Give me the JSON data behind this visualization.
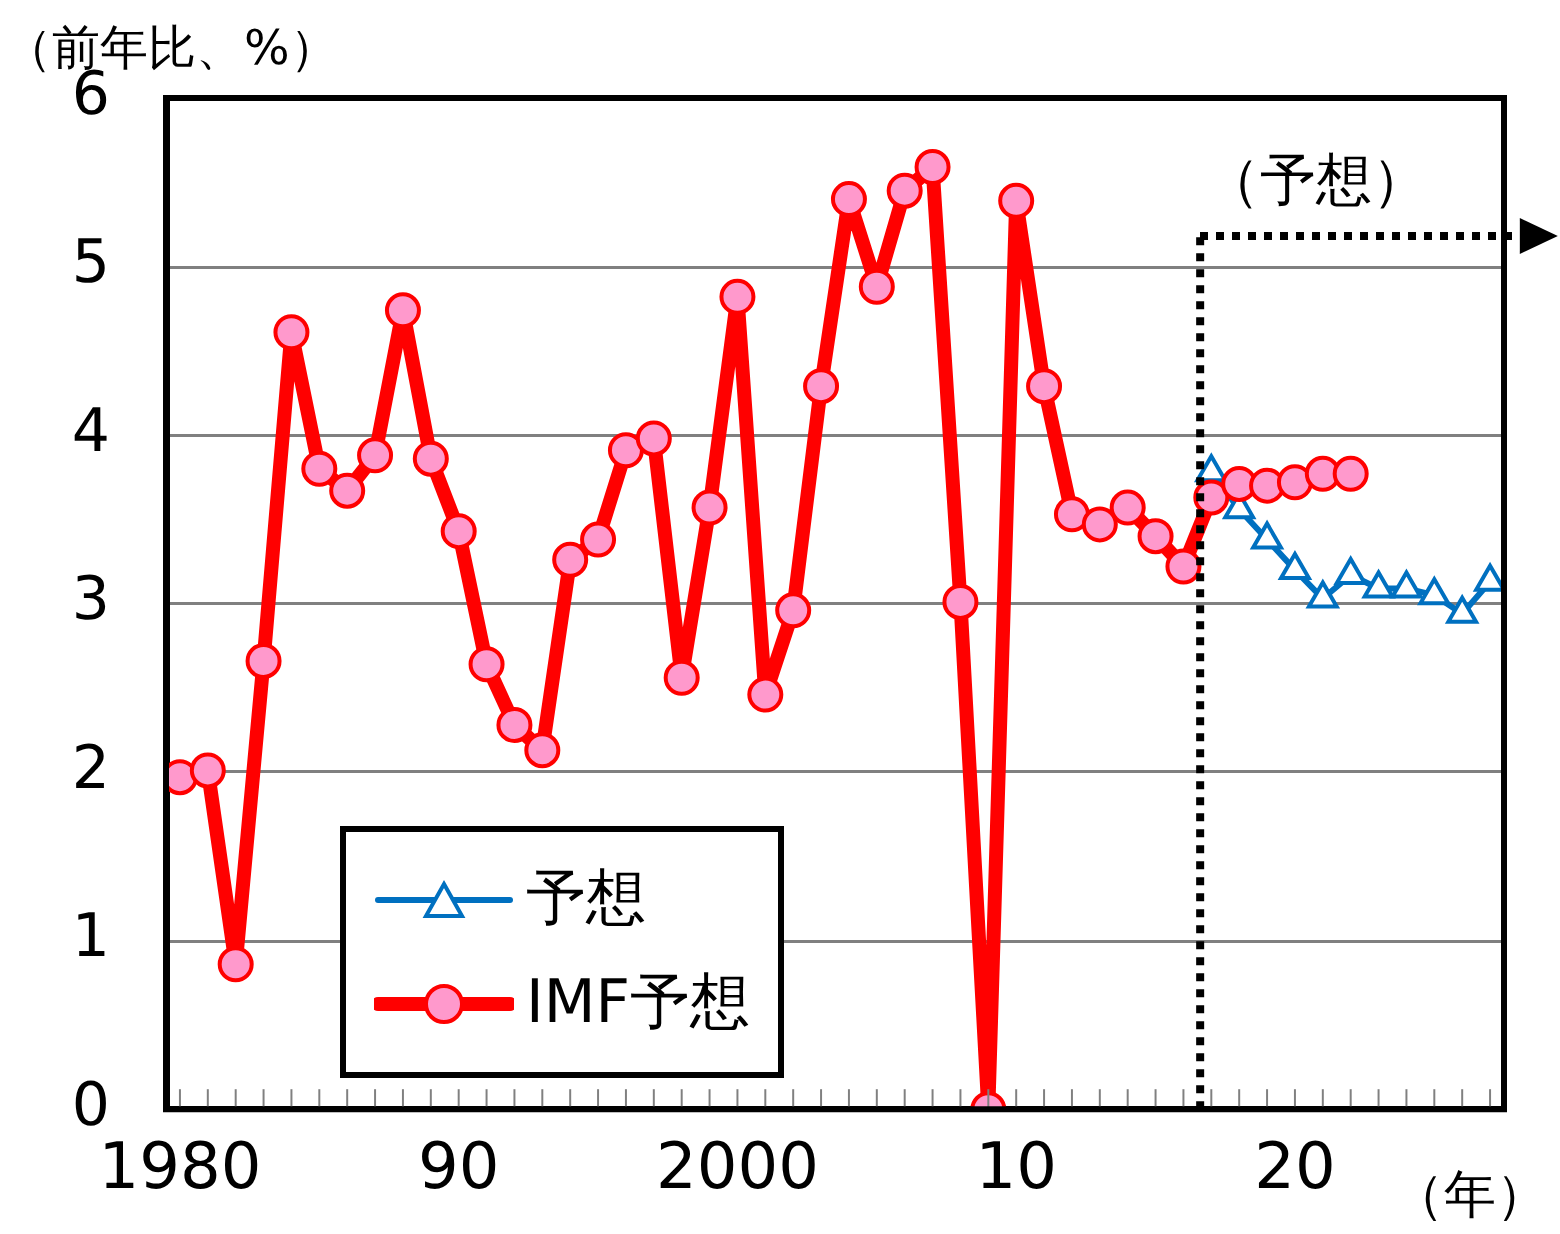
{
  "chart_data": {
    "type": "line",
    "ylabel": "（前年比、%）",
    "xlabel": "（年）",
    "series": [
      {
        "name": "予想",
        "color": "#0070c0",
        "marker": "triangle",
        "x": [
          2017,
          2018,
          2019,
          2020,
          2021,
          2022,
          2023,
          2024,
          2025,
          2026,
          2027
        ],
        "values": [
          3.78,
          3.56,
          3.38,
          3.2,
          3.03,
          3.17,
          3.09,
          3.09,
          3.05,
          2.94,
          3.13
        ]
      },
      {
        "name": "IMF予想",
        "color": "#ff0000",
        "marker": "circle",
        "x": [
          1980,
          1981,
          1982,
          1983,
          1984,
          1985,
          1986,
          1987,
          1988,
          1989,
          1990,
          1991,
          1992,
          1993,
          1994,
          1995,
          1996,
          1997,
          1998,
          1999,
          2000,
          2001,
          2002,
          2003,
          2004,
          2005,
          2006,
          2007,
          2008,
          2009,
          2010,
          2011,
          2012,
          2013,
          2014,
          2015,
          2016,
          2017,
          2018,
          2019,
          2020,
          2021,
          2022
        ],
        "values": [
          1.97,
          2.01,
          0.86,
          2.66,
          4.61,
          3.8,
          3.67,
          3.88,
          4.74,
          3.86,
          3.43,
          2.64,
          2.28,
          2.13,
          3.26,
          3.38,
          3.91,
          3.98,
          2.56,
          3.57,
          4.82,
          2.46,
          2.96,
          4.29,
          5.4,
          4.88,
          5.45,
          5.59,
          3.01,
          0,
          5.39,
          4.29,
          3.53,
          3.47,
          3.57,
          3.4,
          3.22,
          3.63,
          3.71,
          3.7,
          3.72,
          3.77,
          3.77
        ]
      }
    ],
    "xlim": [
      1979.5,
      2027.5
    ],
    "xticks": [
      1980,
      {
        "value": 1981,
        "label": null
      },
      {
        "value": 1982,
        "label": null
      },
      {
        "value": 1983,
        "label": null
      },
      {
        "value": 1984,
        "label": null
      },
      {
        "value": 1985,
        "label": null
      },
      {
        "value": 1986,
        "label": null
      },
      {
        "value": 1987,
        "label": null
      },
      {
        "value": 1988,
        "label": null
      },
      {
        "value": 1989,
        "label": null
      },
      {
        "value": 1990,
        "label": "90"
      },
      {
        "value": 1991,
        "label": null
      },
      {
        "value": 1992,
        "label": null
      },
      {
        "value": 1993,
        "label": null
      },
      {
        "value": 1994,
        "label": null
      },
      {
        "value": 1995,
        "label": null
      },
      {
        "value": 1996,
        "label": null
      },
      {
        "value": 1997,
        "label": null
      },
      {
        "value": 1998,
        "label": null
      },
      {
        "value": 1999,
        "label": null
      },
      2000,
      {
        "value": 2001,
        "label": null
      },
      {
        "value": 2002,
        "label": null
      },
      {
        "value": 2003,
        "label": null
      },
      {
        "value": 2004,
        "label": null
      },
      {
        "value": 2005,
        "label": null
      },
      {
        "value": 2006,
        "label": null
      },
      {
        "value": 2007,
        "label": null
      },
      {
        "value": 2008,
        "label": null
      },
      {
        "value": 2009,
        "label": null
      },
      {
        "value": 2010,
        "label": "10"
      },
      {
        "value": 2011,
        "label": null
      },
      {
        "value": 2012,
        "label": null
      },
      {
        "value": 2013,
        "label": null
      },
      {
        "value": 2014,
        "label": null
      },
      {
        "value": 2015,
        "label": null
      },
      {
        "value": 2016,
        "label": null
      },
      {
        "value": 2017,
        "label": null
      },
      {
        "value": 2018,
        "label": null
      },
      {
        "value": 2019,
        "label": null
      },
      {
        "value": 2020,
        "label": "20"
      },
      {
        "value": 2021,
        "label": null
      },
      {
        "value": 2022,
        "label": null
      },
      {
        "value": 2023,
        "label": null
      },
      {
        "value": 2024,
        "label": null
      },
      {
        "value": 2025,
        "label": null
      },
      {
        "value": 2026,
        "label": null
      },
      {
        "value": 2027,
        "label": null
      }
    ],
    "ylim": [
      0,
      6
    ],
    "yticks": [
      0,
      1,
      2,
      3,
      4,
      5,
      6
    ],
    "ref_lines": [
      {
        "axis": "x",
        "value": 2016.6,
        "label": "（予想）",
        "line_style": "dotted",
        "color": "#000000"
      }
    ],
    "grid": "y",
    "legend": "bottom left"
  }
}
